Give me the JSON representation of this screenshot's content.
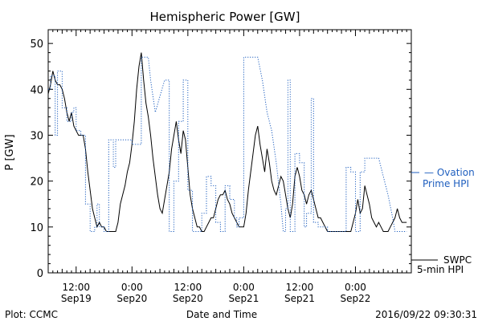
{
  "chart_data": {
    "type": "line",
    "title": "Hemispheric Power [GW]",
    "xlabel": "Date and Time",
    "ylabel": "P [GW]",
    "ylim": [
      0,
      53
    ],
    "xlim_hours": [
      6,
      84
    ],
    "y_ticks": [
      0,
      10,
      20,
      30,
      40,
      50
    ],
    "x_ticks": [
      {
        "t": 12,
        "top": "12:00",
        "bottom": "Sep19"
      },
      {
        "t": 24,
        "top": "0:00",
        "bottom": "Sep20"
      },
      {
        "t": 36,
        "top": "12:00",
        "bottom": "Sep20"
      },
      {
        "t": 48,
        "top": "0:00",
        "bottom": "Sep21"
      },
      {
        "t": 60,
        "top": "12:00",
        "bottom": "Sep21"
      },
      {
        "t": 72,
        "top": "0:00",
        "bottom": "Sep22"
      }
    ],
    "series": [
      {
        "name": "SWPC 5-min HPI",
        "color": "#000000",
        "style": "solid",
        "points": [
          [
            6,
            39
          ],
          [
            6.5,
            41
          ],
          [
            7,
            44
          ],
          [
            7.5,
            42
          ],
          [
            8,
            41
          ],
          [
            8.5,
            41
          ],
          [
            9,
            40
          ],
          [
            9.5,
            38
          ],
          [
            10,
            35
          ],
          [
            10.5,
            33
          ],
          [
            11,
            35
          ],
          [
            11.5,
            32
          ],
          [
            12,
            31
          ],
          [
            12.5,
            30
          ],
          [
            13,
            30
          ],
          [
            13.5,
            30
          ],
          [
            14,
            27
          ],
          [
            14.5,
            22
          ],
          [
            15,
            18
          ],
          [
            15.5,
            14
          ],
          [
            16,
            12
          ],
          [
            16.5,
            10
          ],
          [
            17,
            11
          ],
          [
            17.5,
            10
          ],
          [
            18,
            10
          ],
          [
            18.5,
            9
          ],
          [
            19,
            9
          ],
          [
            19.5,
            9
          ],
          [
            20,
            9
          ],
          [
            20.5,
            9
          ],
          [
            21,
            11
          ],
          [
            21.5,
            15
          ],
          [
            22,
            17
          ],
          [
            22.5,
            19
          ],
          [
            23,
            22
          ],
          [
            23.5,
            24
          ],
          [
            24,
            28
          ],
          [
            24.5,
            33
          ],
          [
            25,
            40
          ],
          [
            25.5,
            45
          ],
          [
            26,
            48
          ],
          [
            26.5,
            42
          ],
          [
            27,
            37
          ],
          [
            27.5,
            34
          ],
          [
            28,
            30
          ],
          [
            28.5,
            25
          ],
          [
            29,
            21
          ],
          [
            29.5,
            17
          ],
          [
            30,
            14
          ],
          [
            30.5,
            13
          ],
          [
            31,
            16
          ],
          [
            31.5,
            19
          ],
          [
            32,
            22
          ],
          [
            32.5,
            27
          ],
          [
            33,
            30
          ],
          [
            33.5,
            33
          ],
          [
            34,
            29
          ],
          [
            34.5,
            26
          ],
          [
            35,
            31
          ],
          [
            35.5,
            29
          ],
          [
            36,
            23
          ],
          [
            36.5,
            17
          ],
          [
            37,
            14
          ],
          [
            37.5,
            12
          ],
          [
            38,
            10
          ],
          [
            38.5,
            10
          ],
          [
            39,
            9
          ],
          [
            39.5,
            9
          ],
          [
            40,
            10
          ],
          [
            40.5,
            11
          ],
          [
            41,
            12
          ],
          [
            41.5,
            12
          ],
          [
            42,
            14
          ],
          [
            42.5,
            16
          ],
          [
            43,
            17
          ],
          [
            43.5,
            17
          ],
          [
            44,
            18
          ],
          [
            44.5,
            16
          ],
          [
            45,
            15
          ],
          [
            45.5,
            13
          ],
          [
            46,
            12
          ],
          [
            46.5,
            11
          ],
          [
            47,
            10
          ],
          [
            47.5,
            10
          ],
          [
            48,
            10
          ],
          [
            48.5,
            13
          ],
          [
            49,
            18
          ],
          [
            49.5,
            22
          ],
          [
            50,
            26
          ],
          [
            50.5,
            30
          ],
          [
            51,
            32
          ],
          [
            51.5,
            28
          ],
          [
            52,
            25
          ],
          [
            52.5,
            22
          ],
          [
            53,
            27
          ],
          [
            53.5,
            24
          ],
          [
            54,
            20
          ],
          [
            54.5,
            18
          ],
          [
            55,
            17
          ],
          [
            55.5,
            19
          ],
          [
            56,
            21
          ],
          [
            56.5,
            20
          ],
          [
            57,
            17
          ],
          [
            57.5,
            14
          ],
          [
            58,
            12
          ],
          [
            58.5,
            15
          ],
          [
            59,
            21
          ],
          [
            59.5,
            23
          ],
          [
            60,
            21
          ],
          [
            60.5,
            18
          ],
          [
            61,
            17
          ],
          [
            61.5,
            15
          ],
          [
            62,
            17
          ],
          [
            62.5,
            18
          ],
          [
            63,
            16
          ],
          [
            63.5,
            14
          ],
          [
            64,
            12
          ],
          [
            64.5,
            12
          ],
          [
            65,
            11
          ],
          [
            65.5,
            10
          ],
          [
            66,
            9
          ],
          [
            66.5,
            9
          ],
          [
            67,
            9
          ],
          [
            68,
            9
          ],
          [
            69,
            9
          ],
          [
            70,
            9
          ],
          [
            71,
            9
          ],
          [
            71.5,
            11
          ],
          [
            72,
            13
          ],
          [
            72.5,
            16
          ],
          [
            73,
            13
          ],
          [
            73.5,
            14
          ],
          [
            74,
            19
          ],
          [
            74.5,
            17
          ],
          [
            75,
            15
          ],
          [
            75.5,
            12
          ],
          [
            76,
            11
          ],
          [
            76.5,
            10
          ],
          [
            77,
            11
          ],
          [
            77.5,
            10
          ],
          [
            78,
            9
          ],
          [
            78.5,
            9
          ],
          [
            79,
            9
          ],
          [
            79.5,
            10
          ],
          [
            80,
            11
          ],
          [
            80.5,
            12
          ],
          [
            81,
            14
          ],
          [
            81.5,
            12
          ],
          [
            82,
            11
          ],
          [
            82.5,
            11
          ],
          [
            83,
            11
          ]
        ]
      },
      {
        "name": "Ovation Prime HPI",
        "color": "#1f5fbf",
        "style": "dotted",
        "points": [
          [
            6,
            40
          ],
          [
            6.5,
            40
          ],
          [
            6.5,
            43
          ],
          [
            7,
            43
          ],
          [
            7.5,
            43
          ],
          [
            7.5,
            30
          ],
          [
            8,
            30
          ],
          [
            8,
            44
          ],
          [
            9,
            44
          ],
          [
            9,
            36
          ],
          [
            10,
            36
          ],
          [
            10,
            33
          ],
          [
            11,
            33
          ],
          [
            11,
            35
          ],
          [
            11.5,
            35
          ],
          [
            11.5,
            36
          ],
          [
            12,
            36
          ],
          [
            12,
            31
          ],
          [
            13,
            31
          ],
          [
            13,
            30
          ],
          [
            14,
            30
          ],
          [
            14,
            15
          ],
          [
            15,
            15
          ],
          [
            15,
            9
          ],
          [
            16,
            9
          ],
          [
            16,
            10
          ],
          [
            16.5,
            10
          ],
          [
            16.5,
            15
          ],
          [
            17,
            15
          ],
          [
            17,
            10
          ],
          [
            18,
            10
          ],
          [
            18,
            9
          ],
          [
            19,
            9
          ],
          [
            19,
            29
          ],
          [
            20,
            29
          ],
          [
            20,
            23
          ],
          [
            20.5,
            23
          ],
          [
            20.5,
            29
          ],
          [
            24,
            29
          ],
          [
            24,
            28
          ],
          [
            26,
            28
          ],
          [
            26,
            47
          ],
          [
            27.5,
            47
          ],
          [
            28,
            42
          ],
          [
            29,
            35
          ],
          [
            31,
            42
          ],
          [
            32,
            42
          ],
          [
            32,
            9
          ],
          [
            33,
            9
          ],
          [
            33,
            20
          ],
          [
            34,
            20
          ],
          [
            34,
            33
          ],
          [
            35,
            33
          ],
          [
            35,
            42
          ],
          [
            36,
            42
          ],
          [
            36,
            18
          ],
          [
            37,
            18
          ],
          [
            37,
            9
          ],
          [
            39,
            9
          ],
          [
            39,
            13
          ],
          [
            40,
            13
          ],
          [
            40,
            21
          ],
          [
            41,
            21
          ],
          [
            41,
            19
          ],
          [
            42,
            19
          ],
          [
            42,
            11
          ],
          [
            43,
            11
          ],
          [
            43,
            9
          ],
          [
            44,
            9
          ],
          [
            44,
            19
          ],
          [
            45,
            19
          ],
          [
            45,
            16
          ],
          [
            46,
            16
          ],
          [
            46,
            12
          ],
          [
            46.5,
            12
          ],
          [
            46.5,
            10
          ],
          [
            47,
            10
          ],
          [
            47,
            12
          ],
          [
            48,
            12
          ],
          [
            48,
            47
          ],
          [
            51,
            47
          ],
          [
            52,
            42
          ],
          [
            53,
            35
          ],
          [
            54,
            31
          ],
          [
            55,
            24
          ],
          [
            56,
            15
          ],
          [
            56.5,
            9
          ],
          [
            57,
            9
          ],
          [
            57,
            14
          ],
          [
            57.5,
            14
          ],
          [
            57.5,
            42
          ],
          [
            58,
            42
          ],
          [
            58,
            9
          ],
          [
            59,
            9
          ],
          [
            59,
            26
          ],
          [
            60,
            26
          ],
          [
            60,
            24
          ],
          [
            61,
            24
          ],
          [
            61,
            10
          ],
          [
            61.5,
            10
          ],
          [
            61.5,
            13
          ],
          [
            62.5,
            13
          ],
          [
            62.5,
            38
          ],
          [
            63,
            38
          ],
          [
            63,
            11
          ],
          [
            64,
            11
          ],
          [
            64,
            10
          ],
          [
            66,
            10
          ],
          [
            66,
            9
          ],
          [
            70,
            9
          ],
          [
            70,
            23
          ],
          [
            71,
            23
          ],
          [
            71,
            22
          ],
          [
            72,
            22
          ],
          [
            72,
            9
          ],
          [
            73,
            9
          ],
          [
            73,
            22
          ],
          [
            74,
            22
          ],
          [
            74,
            25
          ],
          [
            77,
            25
          ],
          [
            79,
            17
          ],
          [
            80,
            12
          ],
          [
            80.5,
            9
          ],
          [
            83,
            9
          ]
        ]
      }
    ],
    "legend": [
      {
        "label": "— Ovation",
        "label2": "Prime HPI",
        "color": "#1f5fbf"
      },
      {
        "label": "SWPC",
        "label2": "5-min HPI",
        "color": "#000000"
      }
    ]
  },
  "footer": {
    "left": "Plot: CCMC",
    "right": "2016/09/22 09:30:31"
  }
}
